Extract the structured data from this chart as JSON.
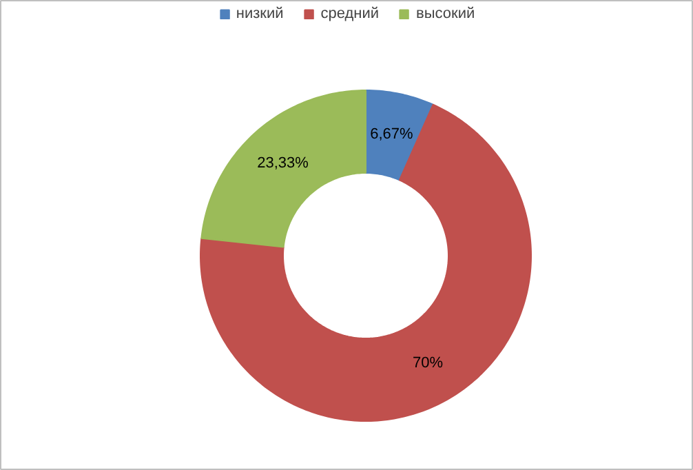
{
  "chart_data": {
    "type": "donut",
    "categories": [
      "низкий",
      "средний",
      "высокий"
    ],
    "values": [
      6.67,
      70,
      23.33
    ],
    "colors": [
      "#4f81bd",
      "#c0504d",
      "#9bbb59"
    ],
    "value_labels": [
      "6,67%",
      "70%",
      "23,33%"
    ],
    "legend": "top"
  }
}
